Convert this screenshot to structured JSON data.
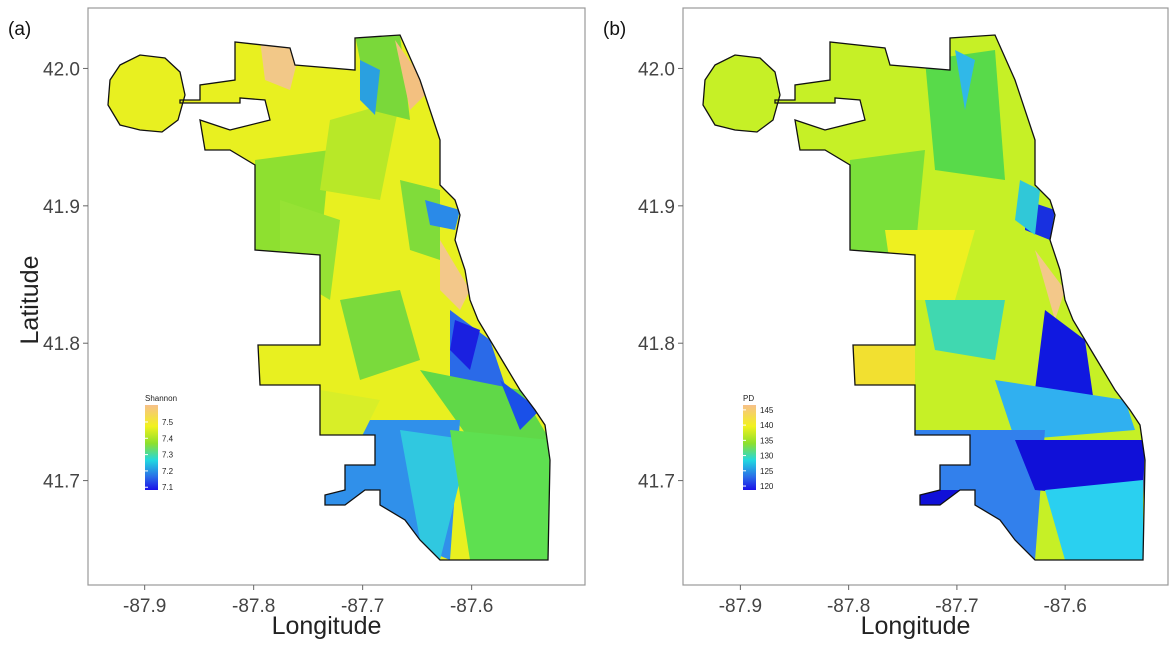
{
  "panels": [
    {
      "label": "(a)",
      "x_label": "Longitude",
      "y_label": "Latitude",
      "xlim": [
        -87.952,
        -87.496
      ],
      "ylim": [
        41.624,
        42.044
      ],
      "xticks": [
        -87.9,
        -87.8,
        -87.7,
        -87.6
      ],
      "yticks": [
        {
          "value": 42.0,
          "label": "42.0"
        },
        41.9,
        41.8,
        41.7
      ],
      "legend": {
        "title": "Shannon",
        "lim": [
          7.083,
          7.604
        ],
        "ticks": [
          7.5,
          7.4,
          7.3,
          7.2,
          7.1
        ]
      }
    },
    {
      "label": "(b)",
      "x_label": "Longitude",
      "xlim": [
        -87.953,
        -87.505
      ],
      "ylim": [
        41.624,
        42.044
      ],
      "xticks": [
        -87.9,
        -87.8,
        -87.7,
        -87.6
      ],
      "yticks": [
        {
          "value": 42.0,
          "label": "42.0"
        },
        41.9,
        41.8,
        41.7
      ],
      "legend": {
        "title": "PD",
        "lim": [
          118.7,
          146.6
        ],
        "ticks": [
          145,
          140,
          135,
          130,
          125,
          120
        ]
      }
    }
  ]
}
